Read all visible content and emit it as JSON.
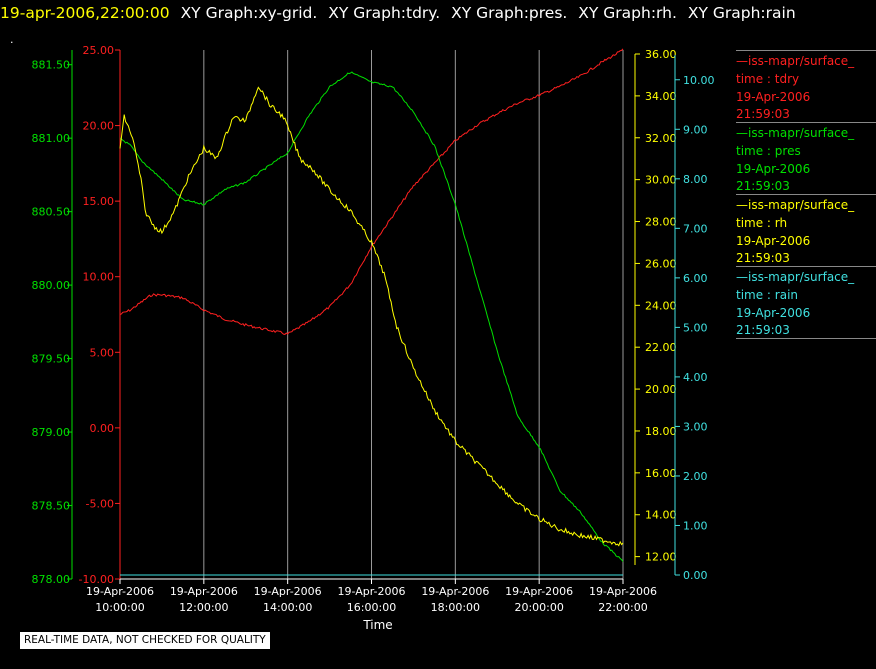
{
  "header": {
    "date": "19-apr-2006,22:00:00",
    "graphs": [
      "XY Graph:xy-grid.",
      "XY Graph:tdry.",
      "XY Graph:pres.",
      "XY Graph:rh.",
      "XY Graph:rain"
    ]
  },
  "marker": ".",
  "disclaimer": "REAL-TIME DATA, NOT CHECKED FOR QUALITY",
  "legend": [
    {
      "name": "iss-mapr/surface_",
      "vars": "time : tdry",
      "date": "19-Apr-2006",
      "time": "21:59:03",
      "color": "#ff2020"
    },
    {
      "name": "iss-mapr/surface_",
      "vars": "time : pres",
      "date": "19-Apr-2006",
      "time": "21:59:03",
      "color": "#00e000"
    },
    {
      "name": "iss-mapr/surface_",
      "vars": "time : rh",
      "date": "19-Apr-2006",
      "time": "21:59:03",
      "color": "#ffff00"
    },
    {
      "name": "iss-mapr/surface_",
      "vars": "time : rain",
      "date": "19-Apr-2006",
      "time": "21:59:03",
      "color": "#40e0e0"
    }
  ],
  "chart_data": {
    "type": "line",
    "xlabel": "Time",
    "x_ticks": [
      {
        "date": "19-Apr-2006",
        "time": "10:00:00",
        "hour": 10
      },
      {
        "date": "19-Apr-2006",
        "time": "12:00:00",
        "hour": 12
      },
      {
        "date": "19-Apr-2006",
        "time": "14:00:00",
        "hour": 14
      },
      {
        "date": "19-Apr-2006",
        "time": "16:00:00",
        "hour": 16
      },
      {
        "date": "19-Apr-2006",
        "time": "18:00:00",
        "hour": 18
      },
      {
        "date": "19-Apr-2006",
        "time": "20:00:00",
        "hour": 20
      },
      {
        "date": "19-Apr-2006",
        "time": "22:00:00",
        "hour": 22
      }
    ],
    "xlim": [
      10,
      22
    ],
    "grid": "vertical",
    "axes": [
      {
        "id": "pres",
        "color": "#00e000",
        "ylim": [
          878.0,
          881.6
        ],
        "ticks": [
          "878.00",
          "878.50",
          "879.00",
          "879.50",
          "880.00",
          "880.50",
          "881.00",
          "881.50"
        ]
      },
      {
        "id": "tdry",
        "color": "#ff2020",
        "ylim": [
          -10,
          25
        ],
        "ticks": [
          "-10.00",
          "-5.00",
          "0.00",
          "5.00",
          "10.00",
          "15.00",
          "20.00",
          "25.00"
        ]
      },
      {
        "id": "rh",
        "color": "#ffff00",
        "ylim": [
          11.6,
          36.0
        ],
        "ticks": [
          "12.00",
          "14.00",
          "16.00",
          "18.00",
          "20.00",
          "22.00",
          "24.00",
          "26.00",
          "28.00",
          "30.00",
          "32.00",
          "34.00",
          "36.00"
        ]
      },
      {
        "id": "rain",
        "color": "#40e0e0",
        "ylim": [
          0,
          10.5
        ],
        "ticks": [
          "0.00",
          "1.00",
          "2.00",
          "3.00",
          "4.00",
          "5.00",
          "6.00",
          "7.00",
          "8.00",
          "9.00",
          "10.00"
        ]
      }
    ],
    "series": [
      {
        "axis": "tdry",
        "color": "#ff2020",
        "x": [
          10,
          10.25,
          10.5,
          10.75,
          11,
          11.5,
          12,
          12.5,
          13,
          13.5,
          14,
          14.5,
          15,
          15.5,
          16,
          16.5,
          17,
          17.5,
          18,
          18.5,
          19,
          19.5,
          20,
          20.5,
          21,
          21.5,
          22
        ],
        "y": [
          7.5,
          7.8,
          8.3,
          8.8,
          8.8,
          8.6,
          7.8,
          7.2,
          6.8,
          6.5,
          6.2,
          7.0,
          8.0,
          9.5,
          12.0,
          14.0,
          16.0,
          17.5,
          19.0,
          20.0,
          20.8,
          21.5,
          22.0,
          22.6,
          23.3,
          24.2,
          25.0
        ]
      },
      {
        "axis": "pres",
        "color": "#00e000",
        "x": [
          10,
          10.25,
          10.5,
          11,
          11.5,
          12,
          12.5,
          13,
          13.5,
          14,
          14.5,
          15,
          15.5,
          16,
          16.5,
          17,
          17.5,
          18,
          18.5,
          19,
          19.5,
          20,
          20.5,
          21,
          21.5,
          22
        ],
        "y": [
          881.0,
          880.95,
          880.85,
          880.72,
          880.58,
          880.55,
          880.65,
          880.7,
          880.8,
          880.9,
          881.15,
          881.35,
          881.45,
          881.38,
          881.35,
          881.18,
          880.95,
          880.55,
          880.05,
          879.55,
          879.1,
          878.9,
          878.6,
          878.45,
          878.25,
          878.12
        ]
      },
      {
        "axis": "rh",
        "color": "#ffff00",
        "x": [
          10,
          10.1,
          10.3,
          10.5,
          10.6,
          10.8,
          11,
          11.3,
          11.6,
          12,
          12.3,
          12.7,
          13,
          13.3,
          13.6,
          13.9,
          14.1,
          14.3,
          14.6,
          15,
          15.5,
          16,
          16.3,
          16.6,
          17,
          17.5,
          18,
          18.5,
          19,
          19.5,
          20,
          20.5,
          21,
          21.5,
          22
        ],
        "y": [
          31.5,
          33.0,
          32.0,
          30.0,
          28.5,
          27.8,
          27.5,
          28.5,
          30.0,
          31.5,
          31.0,
          33.0,
          32.8,
          34.5,
          33.5,
          33.0,
          32.0,
          31.0,
          30.5,
          29.5,
          28.5,
          27.0,
          25.5,
          23.0,
          21.0,
          19.0,
          17.5,
          16.5,
          15.5,
          14.5,
          13.8,
          13.3,
          13.0,
          12.8,
          12.6
        ]
      },
      {
        "axis": "rain",
        "color": "#40e0e0",
        "x": [
          10,
          22
        ],
        "y": [
          0,
          0
        ]
      }
    ]
  }
}
